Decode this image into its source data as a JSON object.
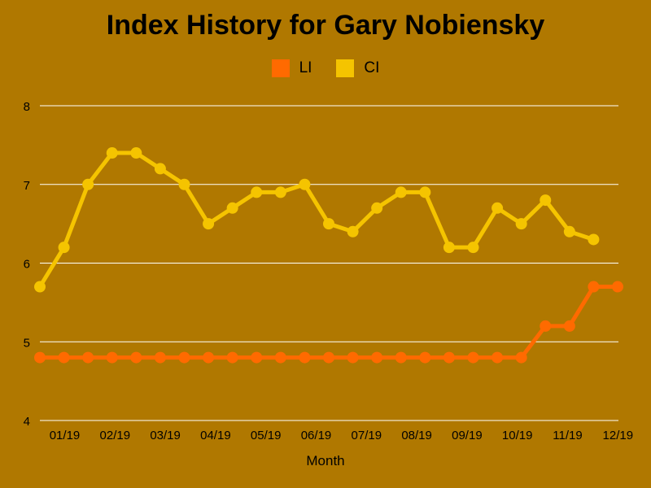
{
  "chart_data": {
    "type": "line",
    "title": "Index History for Gary Nobiensky",
    "xlabel": "Month",
    "ylabel": "",
    "ylim": [
      4,
      8
    ],
    "yticks": [
      4,
      5,
      6,
      7,
      8
    ],
    "x_tick_labels": [
      "01/19",
      "02/19",
      "03/19",
      "04/19",
      "05/19",
      "06/19",
      "07/19",
      "08/19",
      "09/19",
      "10/19",
      "11/19",
      "12/19"
    ],
    "grid": true,
    "legend_position": "top-center",
    "series": [
      {
        "name": "LI",
        "color": "#ff6a00",
        "values": [
          4.8,
          4.8,
          4.8,
          4.8,
          4.8,
          4.8,
          4.8,
          4.8,
          4.8,
          4.8,
          4.8,
          4.8,
          4.8,
          4.8,
          4.8,
          4.8,
          4.8,
          4.8,
          4.8,
          4.8,
          4.8,
          5.2,
          5.2,
          5.7,
          5.7
        ]
      },
      {
        "name": "CI",
        "color": "#f5c400",
        "values": [
          5.7,
          6.2,
          7.0,
          7.4,
          7.4,
          7.2,
          7.0,
          6.5,
          6.7,
          6.9,
          6.9,
          7.0,
          6.5,
          6.4,
          6.7,
          6.9,
          6.9,
          6.2,
          6.2,
          6.7,
          6.5,
          6.8,
          6.4,
          6.3
        ]
      }
    ]
  }
}
